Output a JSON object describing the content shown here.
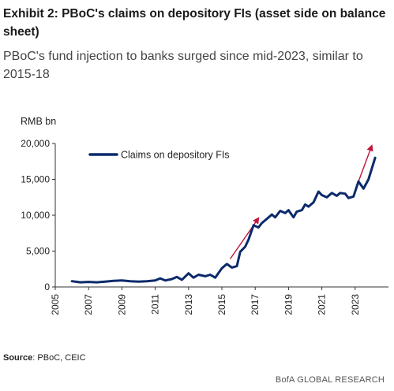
{
  "header": {
    "title": "Exhibit 2: PBoC's claims on depository FIs (asset side on balance sheet)",
    "subtitle": "PBoC's fund injection to banks surged since mid-2023, similar to 2015-18"
  },
  "footer": {
    "source_label": "Source",
    "source_text": ": PBoC, CEIC",
    "brand": "BofA GLOBAL RESEARCH"
  },
  "chart_data": {
    "type": "line",
    "ylabel": "RMB bn",
    "xlabel": "",
    "ylim": [
      0,
      20000
    ],
    "xlim": [
      2005,
      2025
    ],
    "yticks": [
      0,
      5000,
      10000,
      15000,
      20000
    ],
    "ytick_labels": [
      "0",
      "5,000",
      "10,000",
      "15,000",
      "20,000"
    ],
    "xticks": [
      2005,
      2007,
      2009,
      2011,
      2013,
      2015,
      2017,
      2019,
      2021,
      2023
    ],
    "xtick_labels": [
      "2005",
      "2007",
      "2009",
      "2011",
      "2013",
      "2015",
      "2017",
      "2019",
      "2021",
      "2023"
    ],
    "legend_position": "top-left",
    "grid": false,
    "series": [
      {
        "name": "Claims on depository FIs",
        "color": "#0b2a6b",
        "x": [
          2006.0,
          2006.5,
          2007.0,
          2007.5,
          2008.0,
          2008.5,
          2009.0,
          2009.5,
          2010.0,
          2010.5,
          2011.0,
          2011.3,
          2011.6,
          2012.0,
          2012.3,
          2012.6,
          2013.0,
          2013.3,
          2013.6,
          2014.0,
          2014.3,
          2014.6,
          2015.0,
          2015.3,
          2015.6,
          2015.9,
          2016.1,
          2016.4,
          2016.6,
          2016.9,
          2017.2,
          2017.4,
          2017.7,
          2018.0,
          2018.2,
          2018.5,
          2018.8,
          2019.0,
          2019.3,
          2019.5,
          2019.8,
          2020.0,
          2020.2,
          2020.5,
          2020.8,
          2021.0,
          2021.3,
          2021.6,
          2021.9,
          2022.1,
          2022.4,
          2022.6,
          2022.9,
          2023.2,
          2023.5,
          2023.8,
          2024.0,
          2024.2
        ],
        "values": [
          800,
          650,
          700,
          650,
          750,
          850,
          900,
          800,
          750,
          800,
          900,
          1200,
          900,
          1100,
          1400,
          1000,
          1900,
          1300,
          1700,
          1500,
          1700,
          1300,
          2600,
          3200,
          2700,
          2900,
          4900,
          5600,
          6600,
          8600,
          8300,
          8900,
          9500,
          10100,
          9700,
          10600,
          10300,
          10700,
          9700,
          10500,
          10700,
          11500,
          11200,
          11800,
          13300,
          12800,
          12500,
          13100,
          12700,
          13100,
          13000,
          12400,
          12600,
          14700,
          13700,
          15000,
          16500,
          18000
        ]
      }
    ],
    "annotations": [
      {
        "type": "arrow",
        "color": "#c0143c",
        "from": [
          2015.5,
          3900
        ],
        "to": [
          2017.2,
          9600
        ]
      },
      {
        "type": "arrow",
        "color": "#c0143c",
        "from": [
          2023.2,
          14700
        ],
        "to": [
          2024.0,
          19700
        ]
      }
    ]
  }
}
